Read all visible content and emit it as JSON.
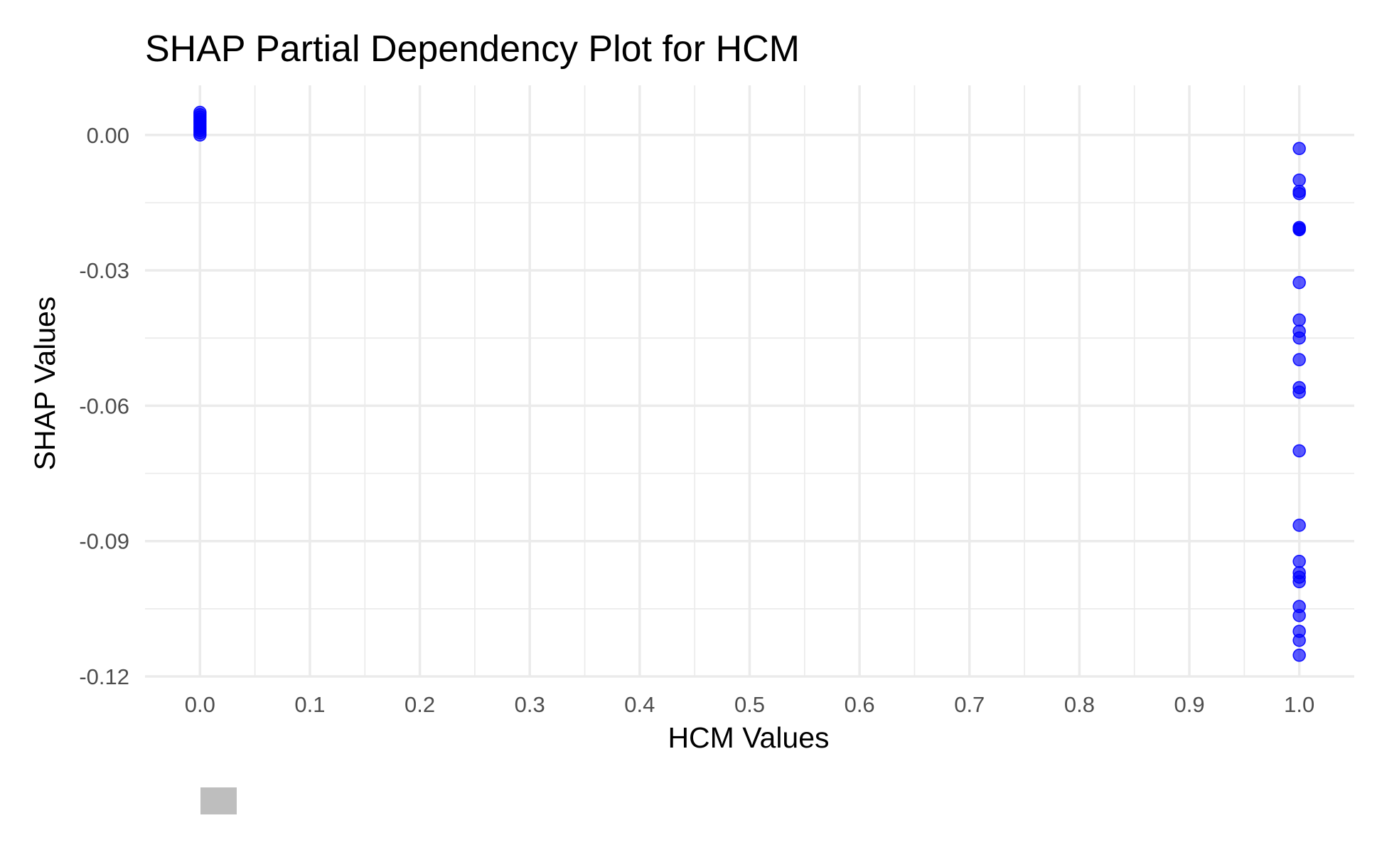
{
  "chart_data": {
    "type": "scatter",
    "title": "SHAP Partial Dependency Plot for HCM",
    "xlabel": "HCM Values",
    "ylabel": "SHAP Values",
    "xlim": [
      -0.05,
      1.05
    ],
    "ylim": [
      -0.12,
      0.011
    ],
    "x_ticks": [
      0.0,
      0.1,
      0.2,
      0.3,
      0.4,
      0.5,
      0.6,
      0.7,
      0.8,
      0.9,
      1.0
    ],
    "x_tick_labels": [
      "0.0",
      "0.1",
      "0.2",
      "0.3",
      "0.4",
      "0.5",
      "0.6",
      "0.7",
      "0.8",
      "0.9",
      "1.0"
    ],
    "y_ticks": [
      0.0,
      -0.03,
      -0.06,
      -0.09,
      -0.12
    ],
    "y_tick_labels": [
      "0.00",
      "-0.03",
      "-0.06",
      "-0.09",
      "-0.12"
    ],
    "grid": true,
    "legend": "bottom",
    "point_color": "#0000ff",
    "point_opacity": 0.65,
    "series": [
      {
        "points": [
          {
            "x": 0,
            "y": 0.005
          },
          {
            "x": 0,
            "y": 0.0045
          },
          {
            "x": 0,
            "y": 0.004
          },
          {
            "x": 0,
            "y": 0.0035
          },
          {
            "x": 0,
            "y": 0.003
          },
          {
            "x": 0,
            "y": 0.0025
          },
          {
            "x": 0,
            "y": 0.002
          },
          {
            "x": 0,
            "y": 0.0015
          },
          {
            "x": 0,
            "y": 0.001
          },
          {
            "x": 0,
            "y": 0.0005
          },
          {
            "x": 0,
            "y": 0.0
          },
          {
            "x": 1,
            "y": -0.003
          },
          {
            "x": 1,
            "y": -0.01
          },
          {
            "x": 1,
            "y": -0.0125
          },
          {
            "x": 1,
            "y": -0.013
          },
          {
            "x": 1,
            "y": -0.0205
          },
          {
            "x": 1,
            "y": -0.0208
          },
          {
            "x": 1,
            "y": -0.021
          },
          {
            "x": 1,
            "y": -0.0327
          },
          {
            "x": 1,
            "y": -0.041
          },
          {
            "x": 1,
            "y": -0.0435
          },
          {
            "x": 1,
            "y": -0.045
          },
          {
            "x": 1,
            "y": -0.0498
          },
          {
            "x": 1,
            "y": -0.056
          },
          {
            "x": 1,
            "y": -0.057
          },
          {
            "x": 1,
            "y": -0.07
          },
          {
            "x": 1,
            "y": -0.0865
          },
          {
            "x": 1,
            "y": -0.0945
          },
          {
            "x": 1,
            "y": -0.097
          },
          {
            "x": 1,
            "y": -0.098
          },
          {
            "x": 1,
            "y": -0.099
          },
          {
            "x": 1,
            "y": -0.1045
          },
          {
            "x": 1,
            "y": -0.1065
          },
          {
            "x": 1,
            "y": -0.11
          },
          {
            "x": 1,
            "y": -0.112
          },
          {
            "x": 1,
            "y": -0.1153
          }
        ]
      }
    ]
  }
}
